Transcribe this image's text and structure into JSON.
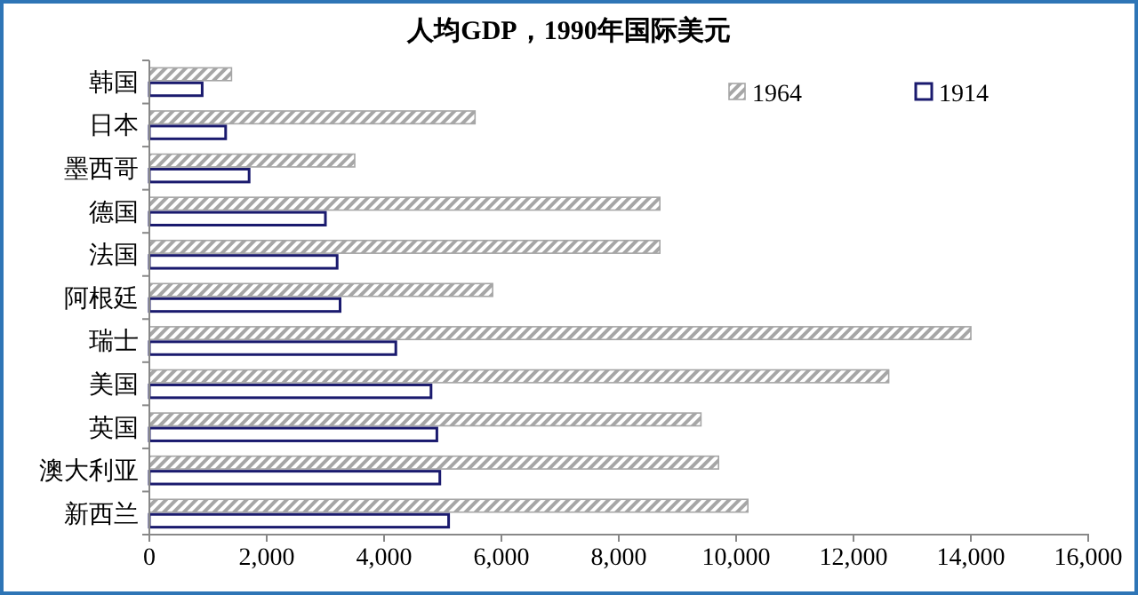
{
  "chart_data": {
    "type": "bar",
    "orientation": "horizontal",
    "title": "人均GDP，1990年国际美元",
    "categories": [
      "韩国",
      "日本",
      "墨西哥",
      "德国",
      "法国",
      "阿根廷",
      "瑞士",
      "美国",
      "英国",
      "澳大利亚",
      "新西兰"
    ],
    "series": [
      {
        "name": "1964",
        "color": "#a6a6a6",
        "values": [
          1400,
          5550,
          3500,
          8700,
          8700,
          5850,
          14000,
          12600,
          9400,
          9700,
          10200
        ]
      },
      {
        "name": "1914",
        "color": "#1a1a6e",
        "values": [
          900,
          1300,
          1700,
          3000,
          3200,
          3250,
          4200,
          4800,
          4900,
          4950,
          5100
        ]
      }
    ],
    "xlim": [
      0,
      16000
    ],
    "xticks": [
      {
        "value": 0,
        "label": "0"
      },
      {
        "value": 2000,
        "label": "2,000"
      },
      {
        "value": 4000,
        "label": "4,000"
      },
      {
        "value": 6000,
        "label": "6,000"
      },
      {
        "value": 8000,
        "label": "8,000"
      },
      {
        "value": 10000,
        "label": "10,000"
      },
      {
        "value": 12000,
        "label": "12,000"
      },
      {
        "value": 14000,
        "label": "14,000"
      },
      {
        "value": 16000,
        "label": "16,000"
      }
    ],
    "grid": false,
    "legend": "top right"
  }
}
